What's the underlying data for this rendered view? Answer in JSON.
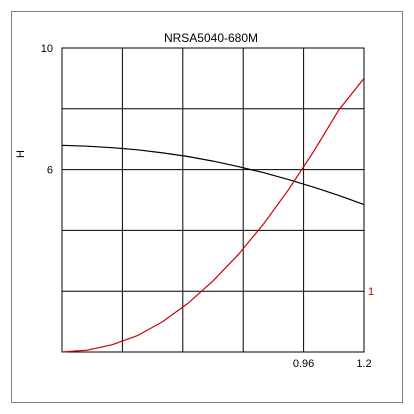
{
  "chart_data": {
    "type": "line",
    "title": "NRSA5040-680M",
    "ylabel": "H",
    "xlabel": "",
    "xlim": [
      0,
      1.2
    ],
    "ylim_left": [
      0,
      10
    ],
    "ylim_right": [
      0,
      5
    ],
    "x_tick_labels": [
      {
        "value": 0.96,
        "label": "0.96"
      },
      {
        "value": 1.2,
        "label": "1.2"
      }
    ],
    "y_tick_labels_left": [
      {
        "value": 6,
        "label": "6"
      },
      {
        "value": 10,
        "label": "10"
      }
    ],
    "y_tick_labels_right": [
      {
        "value": 1,
        "label": "1"
      }
    ],
    "grid": true,
    "series": [
      {
        "axis": "left",
        "color": "#000000",
        "x": [
          0,
          0.1,
          0.2,
          0.3,
          0.4,
          0.5,
          0.6,
          0.7,
          0.8,
          0.9,
          1.0,
          1.1,
          1.2
        ],
        "y": [
          6.8,
          6.77,
          6.72,
          6.65,
          6.55,
          6.43,
          6.28,
          6.1,
          5.9,
          5.67,
          5.42,
          5.15,
          4.85
        ]
      },
      {
        "axis": "right",
        "color": "#cc0000",
        "x": [
          0,
          0.1,
          0.2,
          0.3,
          0.4,
          0.5,
          0.6,
          0.7,
          0.8,
          0.9,
          1.0,
          1.1,
          1.2
        ],
        "y": [
          0,
          0.03,
          0.12,
          0.27,
          0.5,
          0.8,
          1.17,
          1.6,
          2.1,
          2.67,
          3.3,
          3.98,
          4.5
        ]
      }
    ]
  }
}
